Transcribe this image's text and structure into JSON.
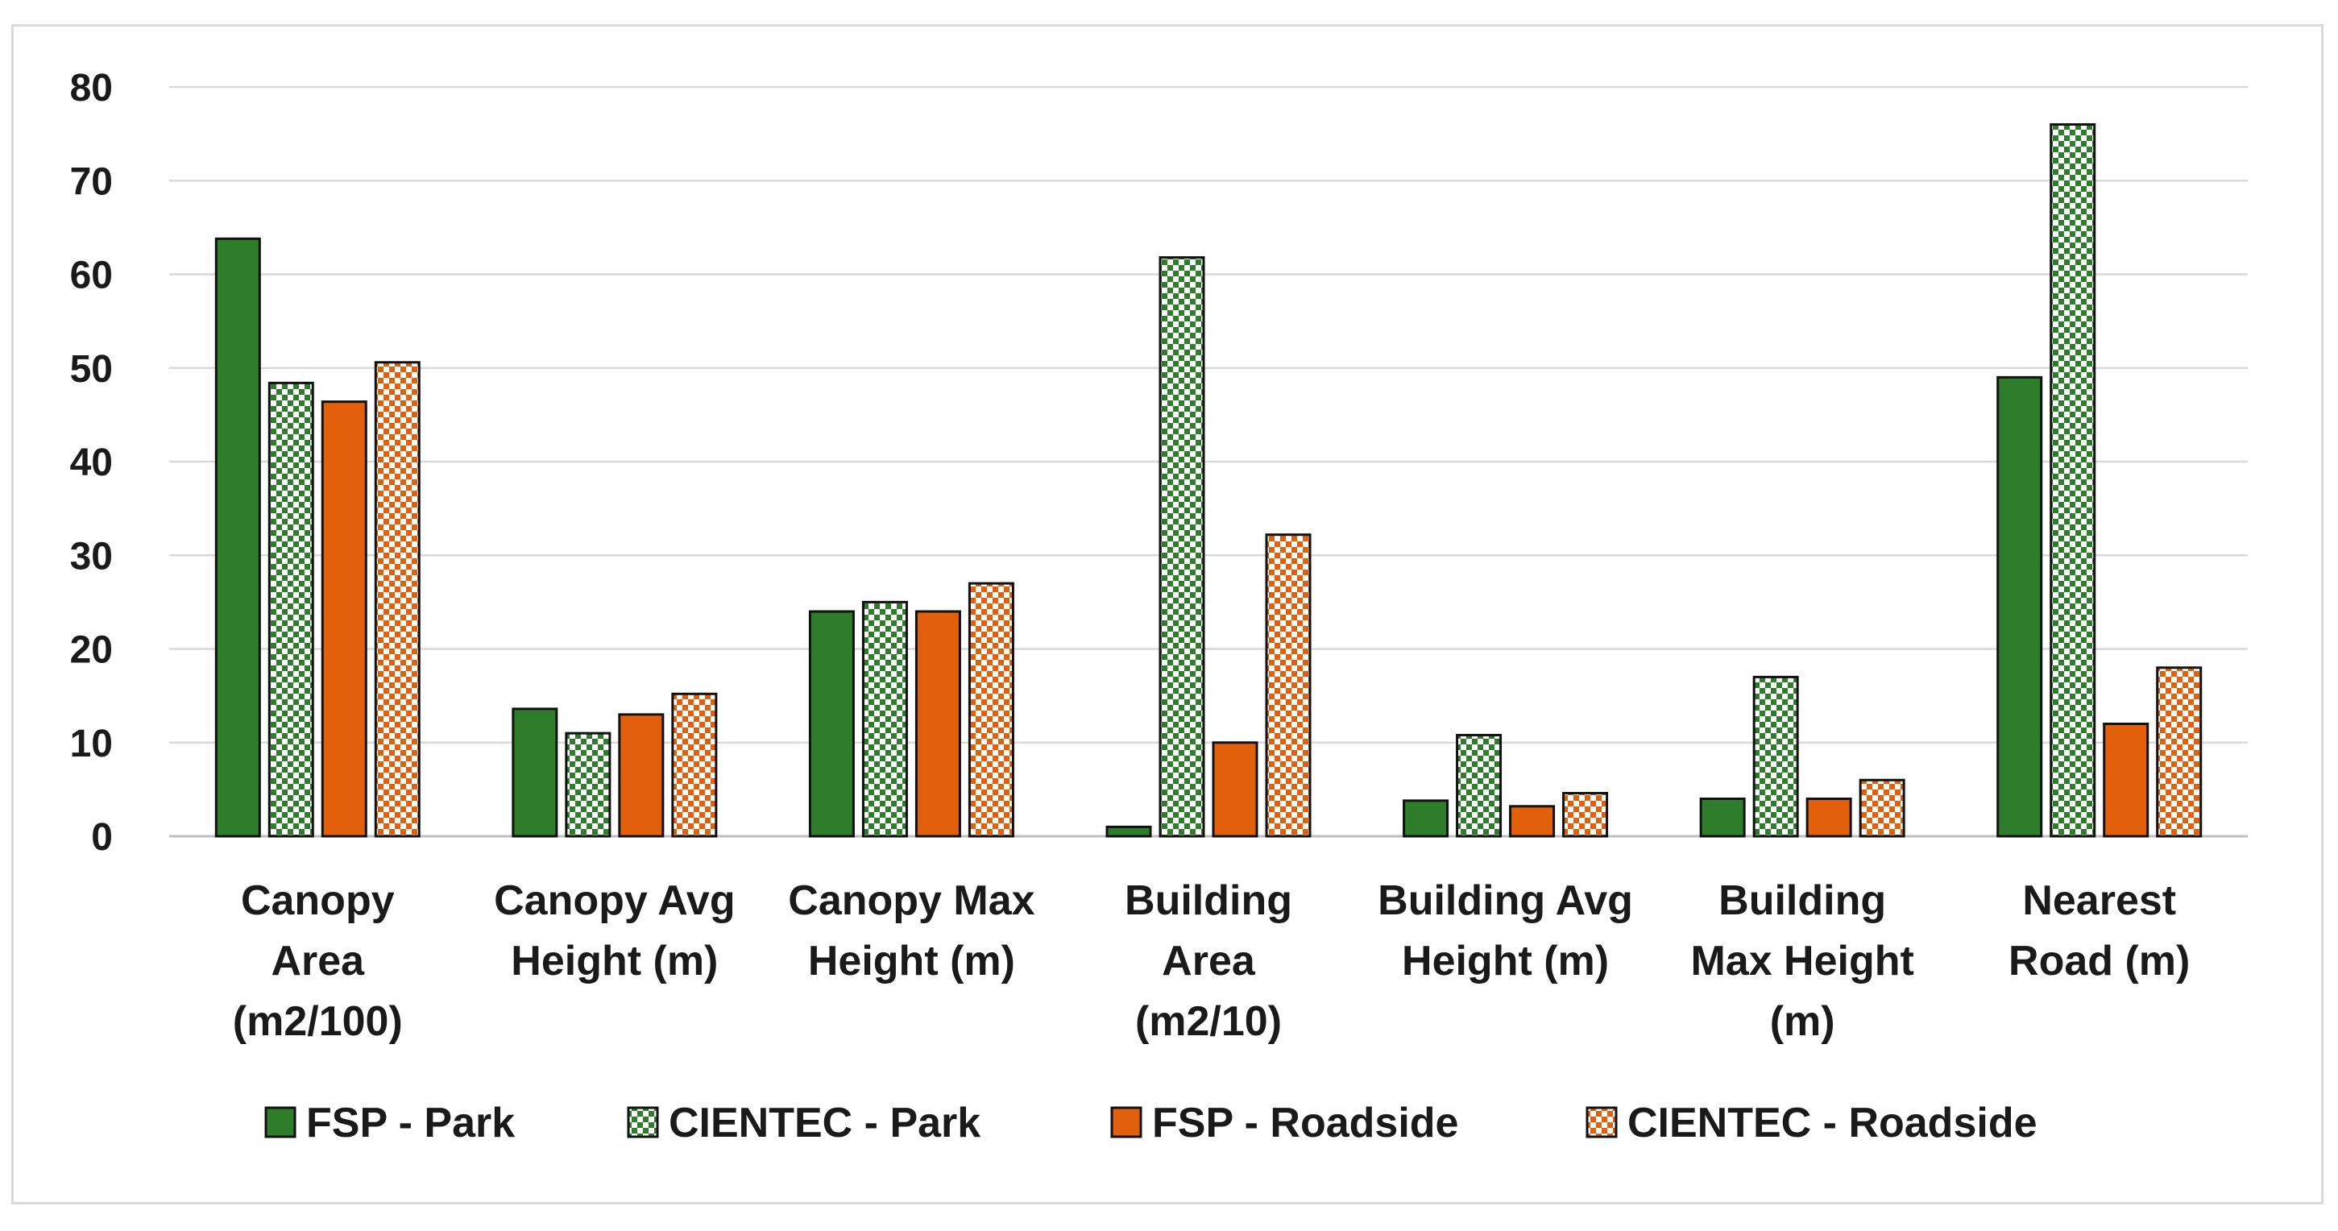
{
  "chart_data": {
    "type": "bar",
    "title": "",
    "xlabel": "",
    "ylabel": "",
    "ylim": [
      0,
      80
    ],
    "yticks": [
      0,
      10,
      20,
      30,
      40,
      50,
      60,
      70,
      80
    ],
    "grid": true,
    "legend_position": "bottom",
    "categories": [
      [
        "Canopy",
        "Area",
        "(m2/100)"
      ],
      [
        "Canopy  Avg",
        "Height (m)"
      ],
      [
        "Canopy  Max",
        "Height (m)"
      ],
      [
        "Building",
        "Area",
        "(m2/10)"
      ],
      [
        "Building Avg",
        "Height (m)"
      ],
      [
        "Building",
        "Max Height",
        "(m)"
      ],
      [
        "Nearest",
        "Road (m)"
      ]
    ],
    "series": [
      {
        "name": "FSP - Park",
        "color": "#2e7d2a",
        "pattern": "solid",
        "values": [
          63.8,
          13.6,
          24,
          1,
          3.8,
          4,
          49
        ]
      },
      {
        "name": "CIENTEC - Park",
        "color": "#2e7d2a",
        "pattern": "checker",
        "values": [
          48.4,
          11,
          25,
          61.8,
          10.8,
          17,
          76
        ]
      },
      {
        "name": "FSP - Roadside",
        "color": "#e2600c",
        "pattern": "solid",
        "values": [
          46.4,
          13,
          24,
          10,
          3.2,
          4,
          12
        ]
      },
      {
        "name": "CIENTEC - Roadside",
        "color": "#e2600c",
        "pattern": "checker",
        "values": [
          50.6,
          15.2,
          27,
          32.2,
          4.6,
          6,
          18
        ]
      }
    ]
  }
}
